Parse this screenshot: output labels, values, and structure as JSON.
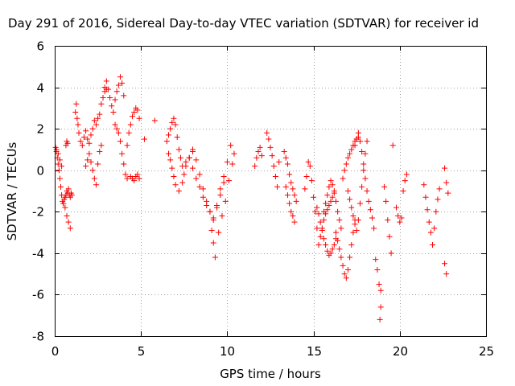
{
  "chart_data": {
    "type": "scatter",
    "title": "Day 291 of 2016, Sidereal Day-to-day VTEC variation (SDTVAR) for receiver id",
    "xlabel": "GPS time / hours",
    "ylabel": "SDTVAR / TECUs",
    "xlim": [
      0,
      25
    ],
    "ylim": [
      -8,
      6
    ],
    "xticks": [
      0,
      5,
      10,
      15,
      20,
      25
    ],
    "xtick_labels": [
      "0",
      "5",
      "10",
      "15",
      "20",
      "25"
    ],
    "yticks": [
      -8,
      -6,
      -4,
      -2,
      0,
      2,
      4,
      6
    ],
    "ytick_labels": [
      "-8",
      "-6",
      "-4",
      "-2",
      "0",
      "2",
      "4",
      "6"
    ],
    "grid": true,
    "marker": "+",
    "color": "#ff0000",
    "series": [
      {
        "name": "SDTVAR",
        "x": [
          0.05,
          0.1,
          0.15,
          0.2,
          0.25,
          0.3,
          0.35,
          0.4,
          0.45,
          0.5,
          0.55,
          0.6,
          0.65,
          0.7,
          0.75,
          0.8,
          0.85,
          0.9,
          0.95,
          1.0,
          0.1,
          0.2,
          0.3,
          0.4,
          0.5,
          0.6,
          0.7,
          0.8,
          0.9,
          0.65,
          0.7,
          0.75,
          1.2,
          1.25,
          1.3,
          1.35,
          1.4,
          1.5,
          1.6,
          1.7,
          1.8,
          1.9,
          2.0,
          2.1,
          2.2,
          2.3,
          2.4,
          2.5,
          2.6,
          2.7,
          2.8,
          2.9,
          3.0,
          1.8,
          1.9,
          2.0,
          2.1,
          2.2,
          2.3,
          2.4,
          2.5,
          2.6,
          2.7,
          2.9,
          3.0,
          3.1,
          3.2,
          3.3,
          3.4,
          3.5,
          3.6,
          3.7,
          3.8,
          3.9,
          4.0,
          3.5,
          3.6,
          3.7,
          3.8,
          3.9,
          4.0,
          4.1,
          4.2,
          4.2,
          4.3,
          4.4,
          4.5,
          4.6,
          4.7,
          4.8,
          4.9,
          4.4,
          4.5,
          4.6,
          4.7,
          4.8,
          4.9,
          5.2,
          5.8,
          6.5,
          6.6,
          6.7,
          6.8,
          6.9,
          7.0,
          7.1,
          7.2,
          7.3,
          7.4,
          7.5,
          6.6,
          6.7,
          6.8,
          6.9,
          7.0,
          7.2,
          7.4,
          7.6,
          7.8,
          8.0,
          7.6,
          7.8,
          8.0,
          8.2,
          8.4,
          8.6,
          8.8,
          9.0,
          9.2,
          9.4,
          9.6,
          9.8,
          8.0,
          8.2,
          8.4,
          8.6,
          8.8,
          9.0,
          9.2,
          9.4,
          9.6,
          9.8,
          10.0,
          10.2,
          10.4,
          9.1,
          9.2,
          9.3,
          9.5,
          9.7,
          9.9,
          10.1,
          10.3,
          11.6,
          11.7,
          11.8,
          11.9,
          12.0,
          12.3,
          12.4,
          12.5,
          12.6,
          12.7,
          12.8,
          12.9,
          13.0,
          13.3,
          13.4,
          13.5,
          13.6,
          13.7,
          13.8,
          13.9,
          14.0,
          13.4,
          13.5,
          13.6,
          13.7,
          13.8,
          13.9,
          14.5,
          14.6,
          14.7,
          14.8,
          14.9,
          15.0,
          15.1,
          15.2,
          15.2,
          15.3,
          15.4,
          15.5,
          15.6,
          15.7,
          15.8,
          15.9,
          16.0,
          16.1,
          16.2,
          16.3,
          15.3,
          15.4,
          15.5,
          15.6,
          15.7,
          15.8,
          15.9,
          16.0,
          16.1,
          16.2,
          15.6,
          15.7,
          15.8,
          15.9,
          16.0,
          16.1,
          16.2,
          16.3,
          16.4,
          16.5,
          16.6,
          16.3,
          16.4,
          16.5,
          16.6,
          16.7,
          16.8,
          16.9,
          17.0,
          17.1,
          17.2,
          17.3,
          17.4,
          16.7,
          16.8,
          16.9,
          17.0,
          17.1,
          17.2,
          17.3,
          17.4,
          17.5,
          17.6,
          17.0,
          17.1,
          17.2,
          17.3,
          17.4,
          17.5,
          17.6,
          17.7,
          17.8,
          17.9,
          18.0,
          18.1,
          17.4,
          17.5,
          17.6,
          17.7,
          17.8,
          17.9,
          18.0,
          18.1,
          18.2,
          18.3,
          18.4,
          18.5,
          18.6,
          18.7,
          18.8,
          18.9,
          18.85,
          18.9,
          19.1,
          19.2,
          19.3,
          19.4,
          19.5,
          19.6,
          19.8,
          19.9,
          20.0,
          20.1,
          20.2,
          20.3,
          20.4,
          21.4,
          21.5,
          21.6,
          21.7,
          21.8,
          21.9,
          22.0,
          22.1,
          22.2,
          22.3,
          22.6,
          22.7,
          22.8,
          22.6,
          22.7
        ],
        "y": [
          1.1,
          0.9,
          0.6,
          0.3,
          0.0,
          -0.4,
          -0.8,
          -1.2,
          -1.5,
          -1.6,
          -1.4,
          -1.3,
          -1.2,
          -1.0,
          -1.1,
          -0.9,
          -1.2,
          -1.3,
          -1.1,
          -1.2,
          1.0,
          0.8,
          0.5,
          0.2,
          -1.6,
          -1.8,
          -2.2,
          -2.5,
          -2.8,
          1.2,
          1.4,
          1.3,
          2.8,
          3.2,
          2.5,
          2.2,
          1.8,
          1.4,
          1.2,
          1.6,
          1.9,
          1.5,
          1.3,
          1.7,
          2.0,
          2.4,
          2.2,
          2.5,
          2.7,
          3.2,
          3.5,
          3.8,
          3.9,
          0.2,
          0.5,
          0.8,
          0.4,
          0.0,
          -0.4,
          -0.7,
          0.3,
          0.9,
          1.2,
          4.0,
          4.3,
          3.9,
          3.5,
          3.1,
          2.8,
          3.4,
          3.8,
          4.1,
          4.5,
          4.2,
          3.6,
          2.2,
          2.0,
          1.8,
          1.4,
          0.8,
          0.3,
          -0.2,
          -0.4,
          1.2,
          1.8,
          2.2,
          2.6,
          2.8,
          3.0,
          2.9,
          2.5,
          -0.3,
          -0.4,
          -0.5,
          -0.3,
          -0.2,
          -0.4,
          1.5,
          2.4,
          1.4,
          1.7,
          2.0,
          2.3,
          2.5,
          2.2,
          1.6,
          1.0,
          0.6,
          0.2,
          -0.2,
          0.8,
          0.5,
          0.1,
          -0.3,
          -0.7,
          -1.0,
          -0.6,
          0.2,
          0.6,
          0.9,
          0.4,
          0.6,
          0.1,
          -0.4,
          -0.8,
          -1.3,
          -1.7,
          -2.0,
          -2.3,
          -1.8,
          -1.2,
          -0.6,
          1.0,
          0.5,
          -0.2,
          -0.9,
          -1.5,
          -2.0,
          -2.4,
          -1.7,
          -0.9,
          -0.3,
          0.4,
          1.2,
          0.8,
          -2.9,
          -3.5,
          -4.2,
          -3.0,
          -2.2,
          -1.5,
          -0.5,
          0.3,
          0.2,
          0.6,
          0.9,
          1.1,
          0.7,
          1.8,
          1.5,
          1.1,
          0.7,
          0.2,
          -0.3,
          -0.8,
          0.4,
          0.9,
          0.6,
          0.3,
          -0.2,
          -0.6,
          -0.9,
          -1.2,
          -1.5,
          -0.8,
          -1.2,
          -1.6,
          -2.0,
          -2.2,
          -2.5,
          -0.9,
          -0.3,
          0.4,
          0.2,
          -0.5,
          -1.3,
          -2.0,
          -2.8,
          -1.8,
          -2.1,
          -2.5,
          -2.9,
          -3.3,
          -3.6,
          -3.9,
          -4.1,
          -4.0,
          -3.8,
          -3.6,
          -3.3,
          -3.6,
          -3.2,
          -2.8,
          -2.4,
          -2.1,
          -1.9,
          -1.7,
          -1.5,
          -1.3,
          -1.0,
          -2.0,
          -1.6,
          -1.2,
          -0.8,
          -0.5,
          -0.7,
          -1.1,
          -1.5,
          -2.0,
          -2.4,
          -2.8,
          -3.0,
          -3.4,
          -3.8,
          -4.2,
          -4.6,
          -5.0,
          -5.2,
          -4.8,
          -4.2,
          -3.6,
          -3.0,
          -2.4,
          -0.4,
          0.0,
          0.3,
          0.6,
          0.8,
          1.0,
          1.2,
          1.4,
          1.5,
          1.6,
          -1.0,
          -1.4,
          -1.8,
          -2.2,
          -2.6,
          -2.9,
          -2.4,
          -1.6,
          -0.8,
          0.0,
          0.8,
          1.4,
          1.2,
          1.5,
          1.8,
          1.4,
          0.9,
          0.3,
          -0.4,
          -1.0,
          -1.5,
          -1.9,
          -2.3,
          -2.8,
          -4.3,
          -4.8,
          -5.5,
          -6.6,
          -7.2,
          -5.8,
          -0.8,
          -1.5,
          -2.4,
          -3.2,
          -4.0,
          1.2,
          -1.8,
          -2.2,
          -2.5,
          -2.3,
          -1.0,
          -0.5,
          -0.2,
          -0.7,
          -1.3,
          -1.9,
          -2.5,
          -3.0,
          -3.6,
          -2.8,
          -2.0,
          -1.4,
          -0.9,
          0.1,
          -0.6,
          -1.1,
          -4.5,
          -5.0
        ]
      }
    ]
  }
}
